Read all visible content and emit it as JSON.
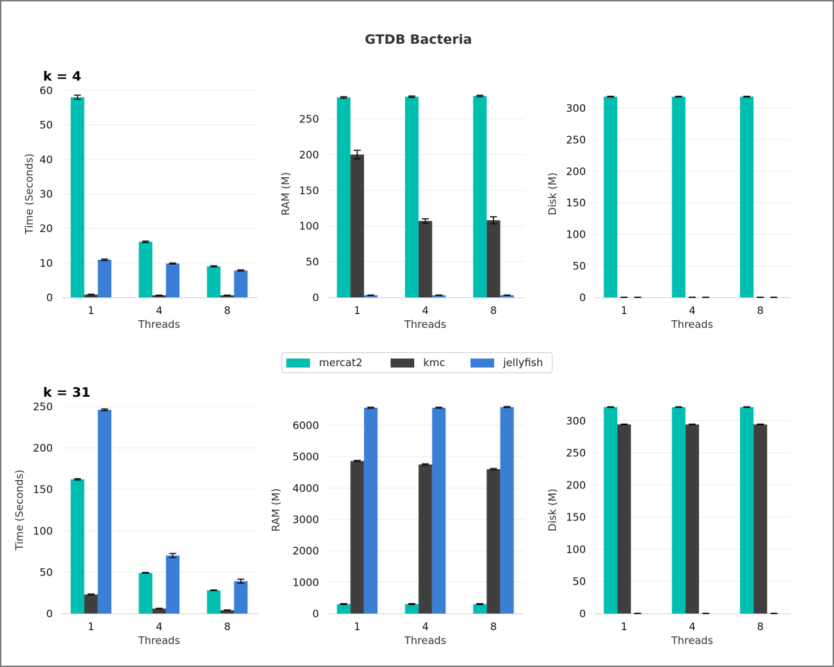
{
  "title": "GTDB Bacteria",
  "rows": [
    {
      "label": "k = 4"
    },
    {
      "label": "k = 31"
    }
  ],
  "legend": {
    "items": [
      {
        "name": "mercat2",
        "color": "#00BFB0"
      },
      {
        "name": "kmc",
        "color": "#3F3F3F"
      },
      {
        "name": "jellyfish",
        "color": "#3A7FD5"
      }
    ]
  },
  "chart_data": [
    {
      "type": "bar",
      "row": 0,
      "col": 0,
      "categories": [
        "1",
        "4",
        "8"
      ],
      "xlabel": "Threads",
      "ylabel": "Time (Seconds)",
      "ylim": [
        0,
        60
      ],
      "yticks": [
        0,
        10,
        20,
        30,
        40,
        50,
        60
      ],
      "grid": true,
      "errorbars": true,
      "series": [
        {
          "name": "mercat2",
          "values": [
            58.0,
            16.1,
            9.0
          ],
          "err": [
            0.6,
            0.2,
            0.15
          ]
        },
        {
          "name": "kmc",
          "values": [
            0.8,
            0.6,
            0.6
          ],
          "err": [
            0.1,
            0.05,
            0.05
          ]
        },
        {
          "name": "jellyfish",
          "values": [
            10.9,
            9.8,
            7.8
          ],
          "err": [
            0.2,
            0.15,
            0.15
          ]
        }
      ]
    },
    {
      "type": "bar",
      "row": 0,
      "col": 1,
      "categories": [
        "1",
        "4",
        "8"
      ],
      "xlabel": "Threads",
      "ylabel": "RAM (M)",
      "ylim": [
        0,
        290
      ],
      "yticks": [
        0,
        50,
        100,
        150,
        200,
        250
      ],
      "grid": true,
      "errorbars": true,
      "series": [
        {
          "name": "mercat2",
          "values": [
            280,
            281,
            282
          ],
          "err": [
            1,
            1,
            1
          ]
        },
        {
          "name": "kmc",
          "values": [
            200,
            107,
            108
          ],
          "err": [
            6,
            3,
            5
          ]
        },
        {
          "name": "jellyfish",
          "values": [
            3,
            3,
            3
          ],
          "err": [
            0.3,
            0.3,
            0.3
          ]
        }
      ]
    },
    {
      "type": "bar",
      "row": 0,
      "col": 2,
      "categories": [
        "1",
        "4",
        "8"
      ],
      "xlabel": "Threads",
      "ylabel": "Disk (M)",
      "ylim": [
        0,
        328
      ],
      "yticks": [
        0,
        50,
        100,
        150,
        200,
        250,
        300
      ],
      "grid": true,
      "errorbars": true,
      "series": [
        {
          "name": "mercat2",
          "values": [
            318,
            318,
            318
          ],
          "err": [
            0.5,
            0.5,
            0.5
          ]
        },
        {
          "name": "kmc",
          "values": [
            0,
            0,
            0
          ],
          "err": [
            0.3,
            0.3,
            0.3
          ]
        },
        {
          "name": "jellyfish",
          "values": [
            0,
            0,
            0
          ],
          "err": [
            0.3,
            0.3,
            0.3
          ]
        }
      ]
    },
    {
      "type": "bar",
      "row": 1,
      "col": 0,
      "categories": [
        "1",
        "4",
        "8"
      ],
      "xlabel": "Threads",
      "ylabel": "Time (Seconds)",
      "ylim": [
        0,
        250
      ],
      "yticks": [
        0,
        50,
        100,
        150,
        200,
        250
      ],
      "grid": true,
      "errorbars": true,
      "series": [
        {
          "name": "mercat2",
          "values": [
            162,
            49,
            28
          ],
          "err": [
            0.8,
            0.5,
            0.4
          ]
        },
        {
          "name": "kmc",
          "values": [
            23,
            6,
            4
          ],
          "err": [
            0.5,
            0.3,
            0.3
          ]
        },
        {
          "name": "jellyfish",
          "values": [
            246,
            70,
            39
          ],
          "err": [
            1,
            2.5,
            2.5
          ]
        }
      ]
    },
    {
      "type": "bar",
      "row": 1,
      "col": 1,
      "categories": [
        "1",
        "4",
        "8"
      ],
      "xlabel": "Threads",
      "ylabel": "RAM (M)",
      "ylim": [
        0,
        6600
      ],
      "yticks": [
        0,
        1000,
        2000,
        3000,
        4000,
        5000,
        6000
      ],
      "grid": true,
      "errorbars": true,
      "series": [
        {
          "name": "mercat2",
          "values": [
            300,
            300,
            300
          ],
          "err": [
            15,
            15,
            15
          ]
        },
        {
          "name": "kmc",
          "values": [
            4860,
            4750,
            4600
          ],
          "err": [
            20,
            20,
            20
          ]
        },
        {
          "name": "jellyfish",
          "values": [
            6560,
            6560,
            6580
          ],
          "err": [
            15,
            15,
            15
          ]
        }
      ]
    },
    {
      "type": "bar",
      "row": 1,
      "col": 2,
      "categories": [
        "1",
        "4",
        "8"
      ],
      "xlabel": "Threads",
      "ylabel": "Disk (M)",
      "ylim": [
        0,
        322
      ],
      "yticks": [
        0,
        50,
        100,
        150,
        200,
        250,
        300
      ],
      "grid": true,
      "errorbars": true,
      "series": [
        {
          "name": "mercat2",
          "values": [
            321,
            321,
            321
          ],
          "err": [
            0.5,
            0.5,
            0.5
          ]
        },
        {
          "name": "kmc",
          "values": [
            294,
            294,
            294
          ],
          "err": [
            0.5,
            0.5,
            0.5
          ]
        },
        {
          "name": "jellyfish",
          "values": [
            0,
            0,
            0
          ],
          "err": [
            0.3,
            0.3,
            0.3
          ]
        }
      ]
    }
  ]
}
